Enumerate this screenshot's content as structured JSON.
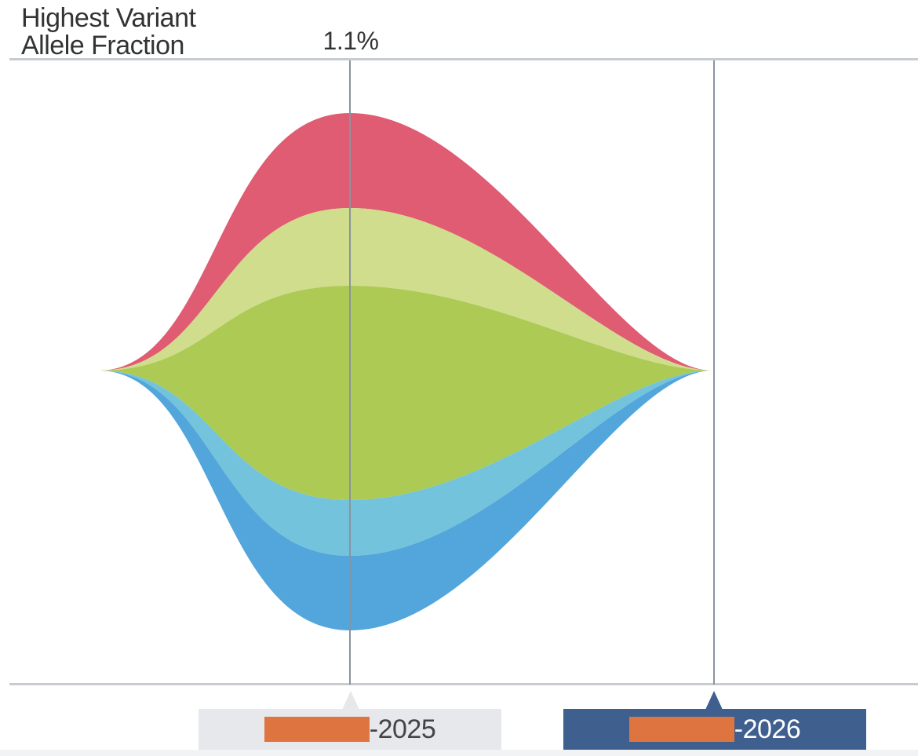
{
  "chart_data": {
    "type": "area",
    "ylabel_lines": [
      "Highest Variant",
      "Allele Fraction"
    ],
    "timepoints": [
      {
        "label_suffix": "-2025",
        "vaf_label": "1.1%",
        "selected": false
      },
      {
        "label_suffix": "-2026",
        "vaf_label": "",
        "selected": true
      }
    ],
    "series": [
      {
        "color": "#df5c73",
        "values": [
          0.24,
          0
        ]
      },
      {
        "color": "#cfdd8c",
        "values": [
          0.22,
          0
        ]
      },
      {
        "color": "#acca54",
        "values": [
          1.0,
          0
        ]
      },
      {
        "color": "#72c3db",
        "values": [
          0.16,
          0
        ]
      },
      {
        "color": "#52a6db",
        "values": [
          0.22,
          0
        ]
      }
    ],
    "layer_boundaries_at_peak": [
      -0.6,
      -0.23,
      0.38,
      0.6,
      0.76
    ]
  },
  "colors": {
    "axis": "#c8ccd0",
    "timeline": "#8a93a0",
    "tab_active": "#3f5f8f",
    "tab_inactive": "#e7e8ec",
    "redaction": "#de7540"
  }
}
